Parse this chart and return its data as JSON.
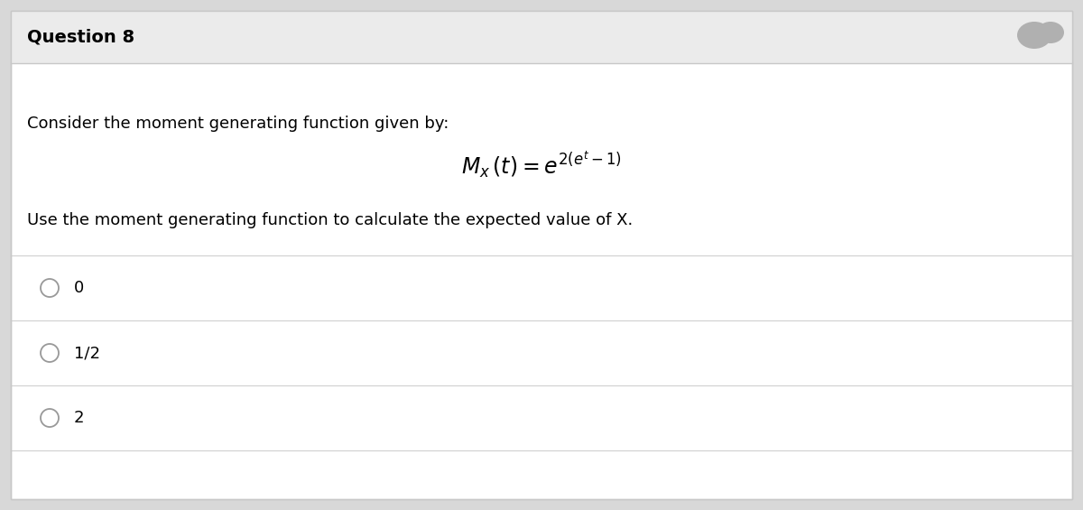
{
  "title": "Question 8",
  "title_fontsize": 14,
  "title_bg_color": "#ebebeb",
  "body_bg_color": "#ffffff",
  "outer_bg_color": "#d8d8d8",
  "border_color": "#c8c8c8",
  "text_color": "#000000",
  "question_text": "Consider the moment generating function given by:",
  "formula": "$M_x\\,(t) = e^{2(e^t-1)}$",
  "follow_text": "Use the moment generating function to calculate the expected value of X.",
  "options": [
    "0",
    "1/2",
    "2"
  ],
  "option_fontsize": 13,
  "text_fontsize": 13,
  "separator_color": "#d0d0d0",
  "formula_fontsize": 17,
  "fig_width": 12.0,
  "fig_height": 5.65,
  "dpi": 100
}
